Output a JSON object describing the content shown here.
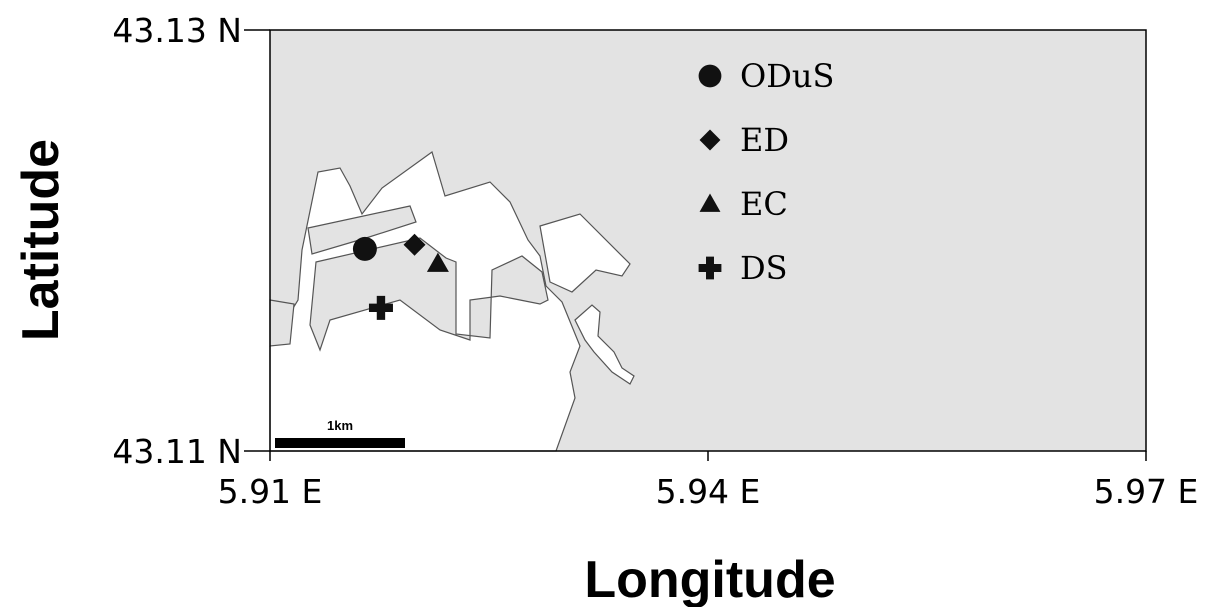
{
  "chart_data": {
    "type": "scatter",
    "xlabel": "Longitude",
    "ylabel": "Latitude",
    "xlim": [
      5.91,
      5.97
    ],
    "ylim": [
      43.11,
      43.13
    ],
    "xticks": [
      {
        "value": 5.91,
        "label": "5.91 E"
      },
      {
        "value": 5.94,
        "label": "5.94 E"
      },
      {
        "value": 5.97,
        "label": "5.97 E"
      }
    ],
    "yticks": [
      {
        "value": 43.11,
        "label": "43.11 N"
      },
      {
        "value": 43.13,
        "label": "43.13 N"
      }
    ],
    "legend": "upper center",
    "scale_bar": {
      "label": "1km"
    },
    "series": [
      {
        "name": "ODuS",
        "marker": "circle",
        "color": "#111111",
        "x": [
          5.9165
        ],
        "values": [
          43.1196
        ]
      },
      {
        "name": "ED",
        "marker": "diamond",
        "color": "#111111",
        "x": [
          5.9199
        ],
        "values": [
          43.1198
        ]
      },
      {
        "name": "EC",
        "marker": "triangle",
        "color": "#111111",
        "x": [
          5.9215
        ],
        "values": [
          43.1189
        ]
      },
      {
        "name": "DS",
        "marker": "plus",
        "color": "#111111",
        "x": [
          5.9176
        ],
        "values": [
          43.1168
        ]
      }
    ]
  }
}
